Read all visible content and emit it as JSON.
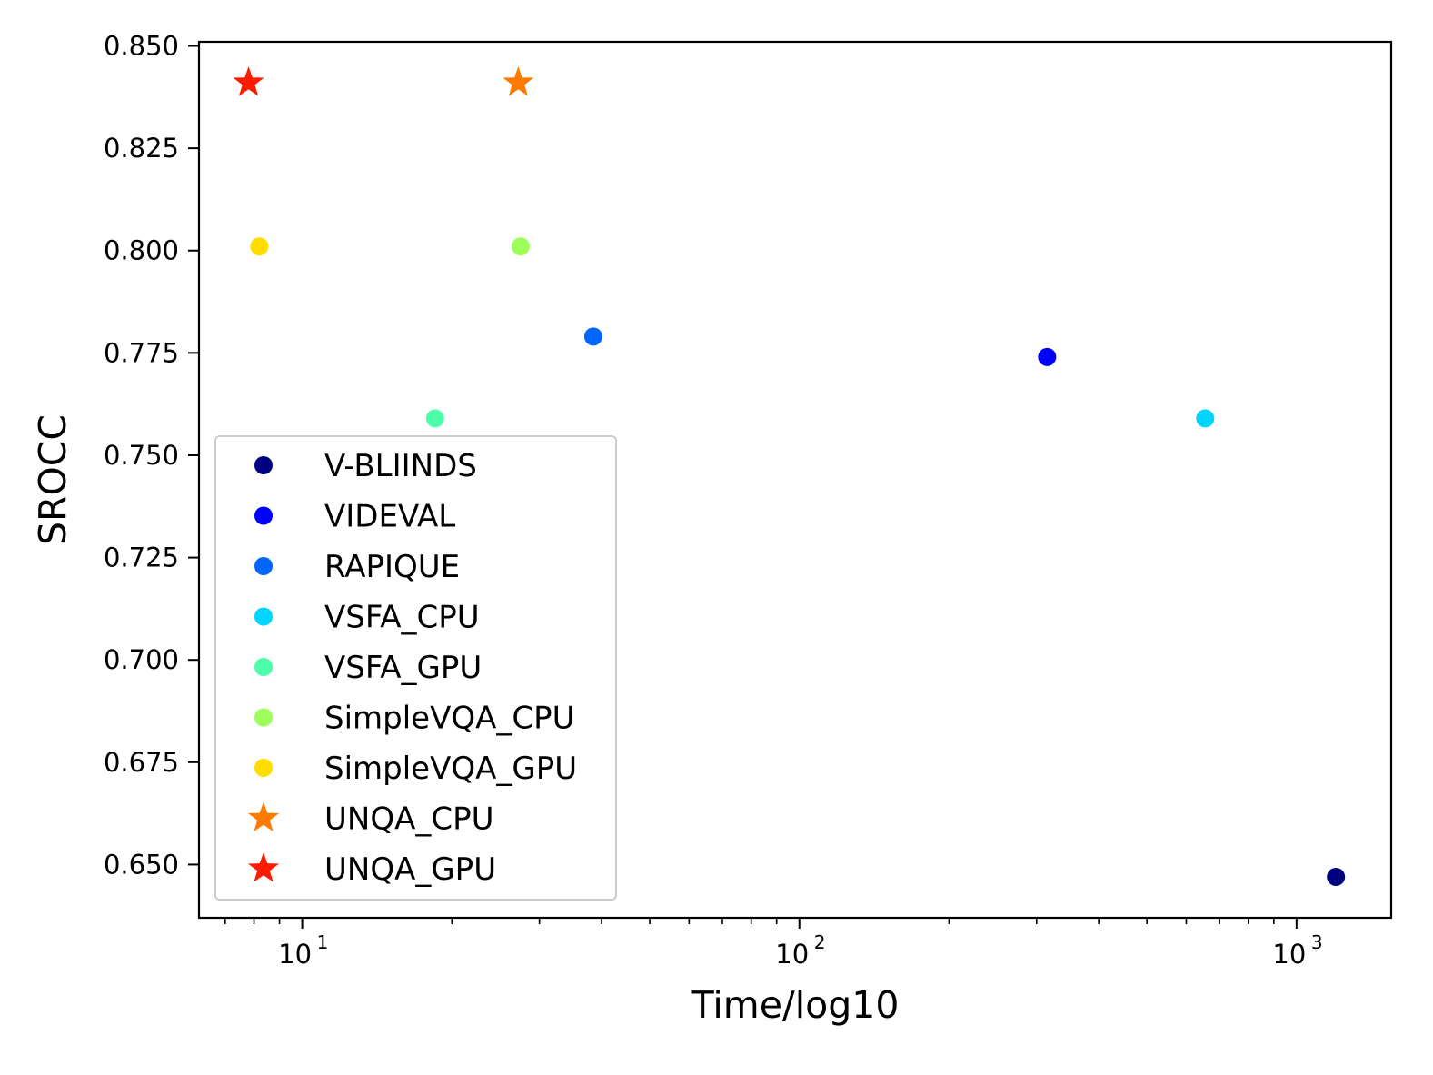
{
  "chart_data": {
    "type": "scatter",
    "title": "",
    "xlabel": "Time/log10",
    "ylabel": "SROCC",
    "xscale": "log",
    "xlim": [
      6.2,
      1550
    ],
    "ylim": [
      0.637,
      0.851
    ],
    "grid": false,
    "legend_position": "lower-left",
    "x_ticks": [
      {
        "value": 10,
        "base": "10",
        "exp": "1"
      },
      {
        "value": 100,
        "base": "10",
        "exp": "2"
      },
      {
        "value": 1000,
        "base": "10",
        "exp": "3"
      }
    ],
    "y_ticks": [
      {
        "value": 0.65,
        "label": "0.650"
      },
      {
        "value": 0.675,
        "label": "0.675"
      },
      {
        "value": 0.7,
        "label": "0.700"
      },
      {
        "value": 0.725,
        "label": "0.725"
      },
      {
        "value": 0.75,
        "label": "0.750"
      },
      {
        "value": 0.775,
        "label": "0.775"
      },
      {
        "value": 0.8,
        "label": "0.800"
      },
      {
        "value": 0.825,
        "label": "0.825"
      },
      {
        "value": 0.85,
        "label": "0.850"
      }
    ],
    "series": [
      {
        "name": "V-BLIINDS",
        "marker": "circle",
        "color": "#000080",
        "x": 1200,
        "y": 0.647
      },
      {
        "name": "VIDEVAL",
        "marker": "circle",
        "color": "#0000ff",
        "x": 315,
        "y": 0.774
      },
      {
        "name": "RAPIQUE",
        "marker": "circle",
        "color": "#0066ff",
        "x": 38.5,
        "y": 0.779
      },
      {
        "name": "VSFA_CPU",
        "marker": "circle",
        "color": "#00d5ff",
        "x": 655,
        "y": 0.759
      },
      {
        "name": "VSFA_GPU",
        "marker": "circle",
        "color": "#4dffaa",
        "x": 18.5,
        "y": 0.759
      },
      {
        "name": "SimpleVQA_CPU",
        "marker": "circle",
        "color": "#9cff5a",
        "x": 27.5,
        "y": 0.801
      },
      {
        "name": "SimpleVQA_GPU",
        "marker": "circle",
        "color": "#ffdd00",
        "x": 8.2,
        "y": 0.801
      },
      {
        "name": "UNQA_CPU",
        "marker": "star",
        "color": "#ff7b00",
        "x": 27.2,
        "y": 0.841
      },
      {
        "name": "UNQA_GPU",
        "marker": "star",
        "color": "#ff1a00",
        "x": 7.8,
        "y": 0.841
      }
    ]
  }
}
